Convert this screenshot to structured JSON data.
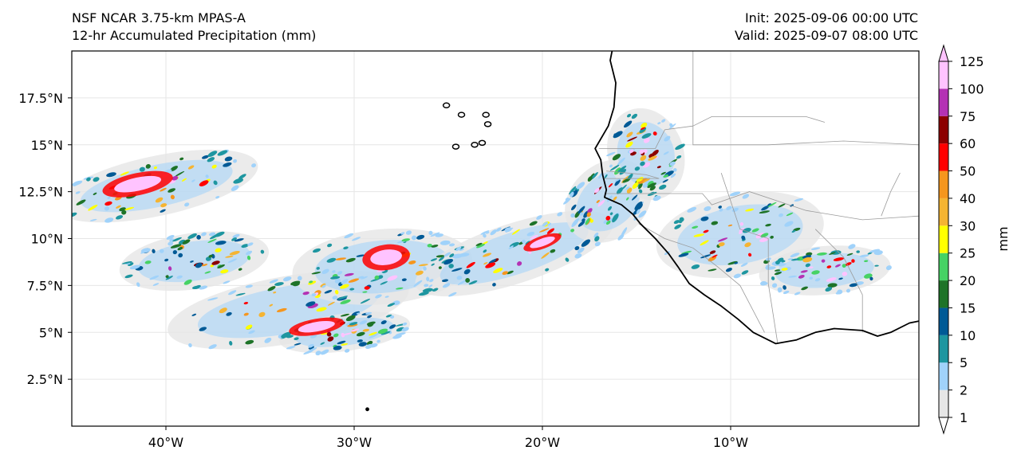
{
  "header": {
    "model": "NSF NCAR 3.75-km MPAS-A",
    "field": "12-hr Accumulated Precipitation (mm)",
    "init": "Init: 2025-09-06 00:00 UTC",
    "valid": "Valid: 2025-09-07 08:00 UTC"
  },
  "map": {
    "lon_range": [
      -45,
      0
    ],
    "lat_range": [
      0,
      20
    ],
    "lon_ticks": [
      {
        "value": -40,
        "label": "40°W"
      },
      {
        "value": -30,
        "label": "30°W"
      },
      {
        "value": -20,
        "label": "20°W"
      },
      {
        "value": -10,
        "label": "10°W"
      }
    ],
    "lat_ticks": [
      {
        "value": 2.5,
        "label": "2.5°N"
      },
      {
        "value": 5,
        "label": "5°N"
      },
      {
        "value": 7.5,
        "label": "7.5°N"
      },
      {
        "value": 10,
        "label": "10°N"
      },
      {
        "value": 12.5,
        "label": "12.5°N"
      },
      {
        "value": 15,
        "label": "15°N"
      },
      {
        "value": 17.5,
        "label": "17.5°N"
      }
    ],
    "colors": {
      "coast": "#000000",
      "border": "#9a9a9a",
      "grid": "#e6e6e6"
    }
  },
  "colorbar": {
    "label": "mm",
    "levels": [
      1,
      2,
      5,
      10,
      15,
      20,
      25,
      30,
      40,
      50,
      60,
      75,
      100,
      125
    ],
    "colors": [
      "#e6e6e6",
      "#a0d2fa",
      "#1e96a0",
      "#005a96",
      "#1e7328",
      "#46d264",
      "#ffff00",
      "#f5b432",
      "#f5961e",
      "#ff0000",
      "#8c0000",
      "#b432b4",
      "#ffc3ff"
    ]
  }
}
